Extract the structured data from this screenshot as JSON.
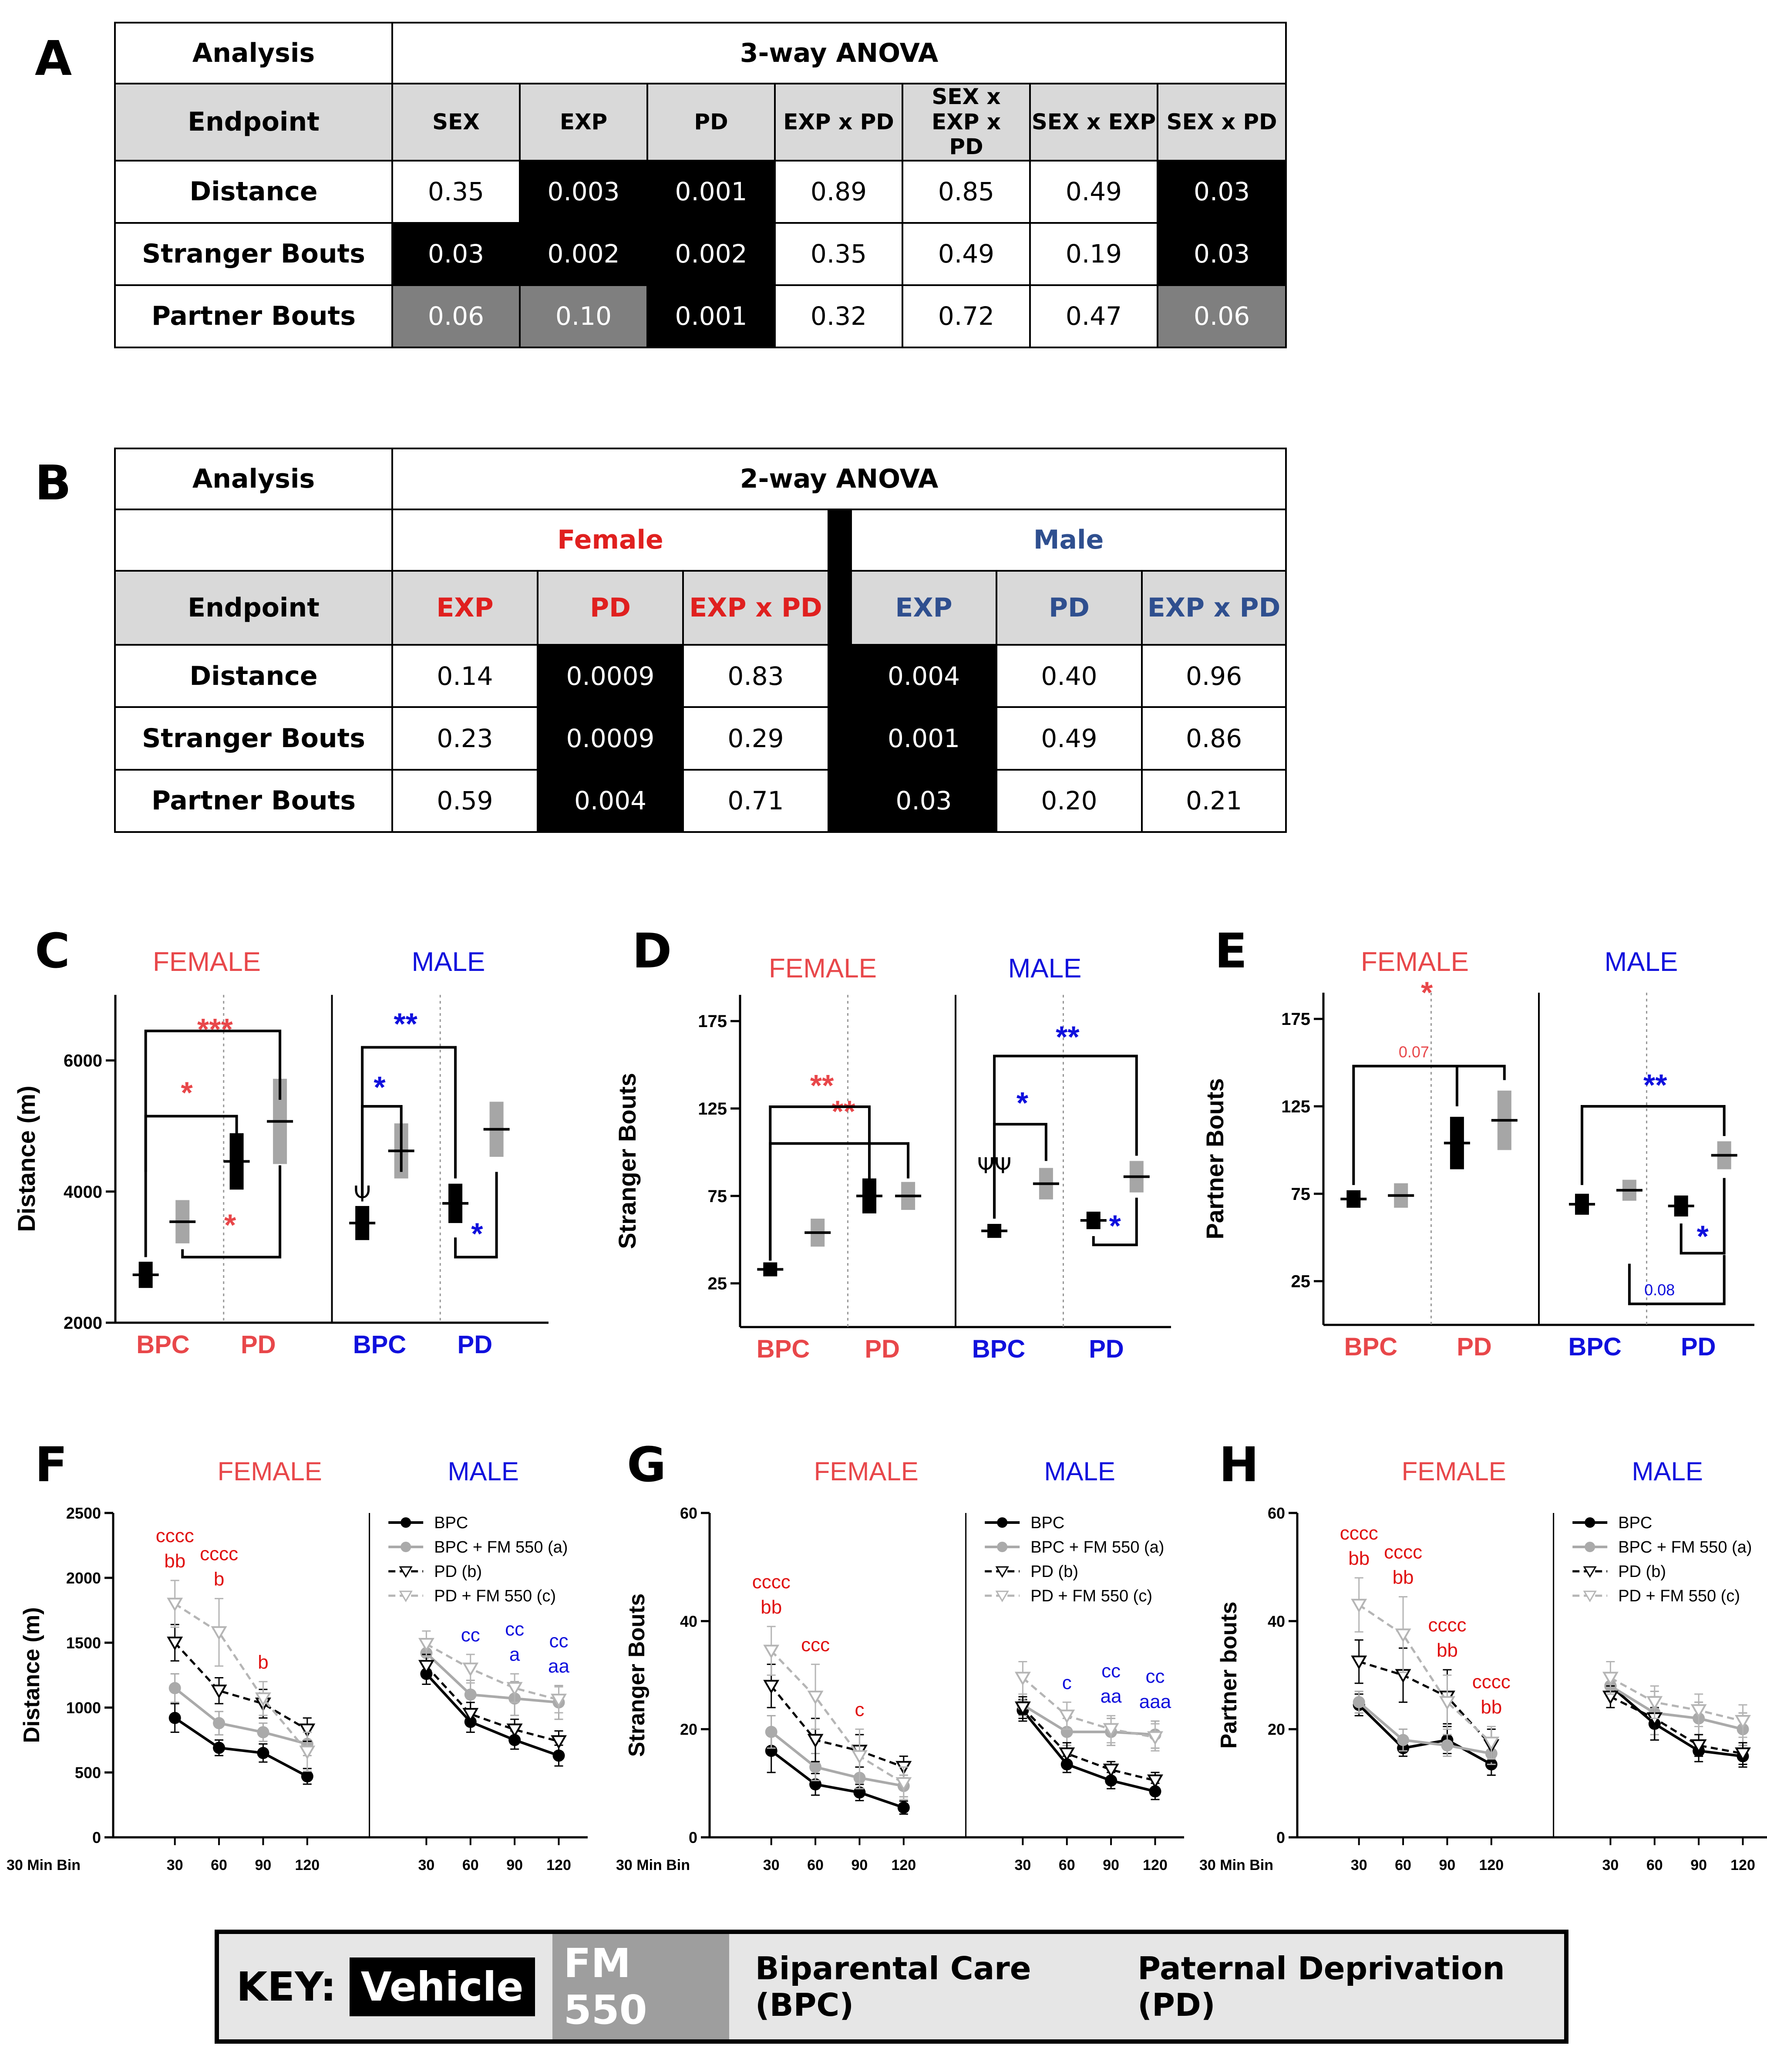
{
  "panels": {
    "A": "A",
    "B": "B",
    "C": "C",
    "D": "D",
    "E": "E",
    "F": "F",
    "G": "G",
    "H": "H"
  },
  "tableA": {
    "analysis_label": "Analysis",
    "analysis_value": "3-way ANOVA",
    "endpoint_label": "Endpoint",
    "columns": [
      "SEX",
      "EXP",
      "PD",
      "EXP x PD",
      "SEX x EXP x PD",
      "SEX x EXP",
      "SEX x PD"
    ],
    "rows": [
      {
        "name": "Distance",
        "values": [
          "0.35",
          "0.003",
          "0.001",
          "0.89",
          "0.85",
          "0.49",
          "0.03"
        ],
        "shade": [
          "w",
          "b",
          "b",
          "w",
          "w",
          "w",
          "b"
        ]
      },
      {
        "name": "Stranger Bouts",
        "values": [
          "0.03",
          "0.002",
          "0.002",
          "0.35",
          "0.49",
          "0.19",
          "0.03"
        ],
        "shade": [
          "b",
          "b",
          "b",
          "w",
          "w",
          "w",
          "b"
        ]
      },
      {
        "name": "Partner Bouts",
        "values": [
          "0.06",
          "0.10",
          "0.001",
          "0.32",
          "0.72",
          "0.47",
          "0.06"
        ],
        "shade": [
          "g",
          "g",
          "b",
          "w",
          "w",
          "w",
          "g"
        ]
      }
    ]
  },
  "tableB": {
    "analysis_label": "Analysis",
    "analysis_value": "2-way ANOVA",
    "female": "Female",
    "male": "Male",
    "endpoint_label": "Endpoint",
    "columns": [
      "EXP",
      "PD",
      "EXP x PD",
      "EXP",
      "PD",
      "EXP x PD"
    ],
    "rows": [
      {
        "name": "Distance",
        "values": [
          "0.14",
          "0.0009",
          "0.83",
          "0.004",
          "0.40",
          "0.96"
        ],
        "shade": [
          "w",
          "b",
          "w",
          "b",
          "w",
          "w"
        ]
      },
      {
        "name": "Stranger Bouts",
        "values": [
          "0.23",
          "0.0009",
          "0.29",
          "0.001",
          "0.49",
          "0.86"
        ],
        "shade": [
          "w",
          "b",
          "w",
          "b",
          "w",
          "w"
        ]
      },
      {
        "name": "Partner Bouts",
        "values": [
          "0.59",
          "0.004",
          "0.71",
          "0.03",
          "0.20",
          "0.21"
        ],
        "shade": [
          "w",
          "b",
          "w",
          "b",
          "w",
          "w"
        ]
      }
    ]
  },
  "colors": {
    "female": "#e8474a",
    "male": "#1010dd",
    "vehicle": "#000000",
    "fm550": "#a6a6a6",
    "male_table": "#2f4f8f",
    "female_table": "#e0201f"
  },
  "chart_data": [
    {
      "id": "C",
      "type": "scatter",
      "ylabel": "Distance (m)",
      "ylim": [
        2000,
        7000
      ],
      "yticks": [
        2000,
        4000,
        6000
      ],
      "female_title": "FEMALE",
      "male_title": "MALE",
      "categories": [
        "BPC",
        "PD",
        "BPC",
        "PD"
      ],
      "series": [
        {
          "name": "Vehicle",
          "group": "FEMALE BPC",
          "mean": 2730,
          "sem": 200
        },
        {
          "name": "FM 550",
          "group": "FEMALE BPC",
          "mean": 3540,
          "sem": 330
        },
        {
          "name": "Vehicle",
          "group": "FEMALE PD",
          "mean": 4460,
          "sem": 430
        },
        {
          "name": "FM 550",
          "group": "FEMALE PD",
          "mean": 5070,
          "sem": 650
        },
        {
          "name": "Vehicle",
          "group": "MALE BPC",
          "mean": 3520,
          "sem": 260
        },
        {
          "name": "FM 550",
          "group": "MALE BPC",
          "mean": 4620,
          "sem": 420
        },
        {
          "name": "Vehicle",
          "group": "MALE PD",
          "mean": 3820,
          "sem": 300
        },
        {
          "name": "FM 550",
          "group": "MALE PD",
          "mean": 4950,
          "sem": 420
        }
      ],
      "annotations": {
        "f_top": "***",
        "f_mid": "*",
        "f_low": "*",
        "m_top": "**",
        "m_mid": "*",
        "m_low": "*",
        "psi": "Ψ"
      }
    },
    {
      "id": "D",
      "type": "scatter",
      "ylabel": "Stranger Bouts",
      "ylim": [
        0,
        190
      ],
      "yticks": [
        25,
        75,
        125,
        175
      ],
      "female_title": "FEMALE",
      "male_title": "MALE",
      "categories": [
        "BPC",
        "PD",
        "BPC",
        "PD"
      ],
      "series": [
        {
          "name": "Vehicle",
          "group": "FEMALE BPC",
          "mean": 33,
          "sem": 4
        },
        {
          "name": "FM 550",
          "group": "FEMALE BPC",
          "mean": 54,
          "sem": 8
        },
        {
          "name": "Vehicle",
          "group": "FEMALE PD",
          "mean": 75,
          "sem": 10
        },
        {
          "name": "FM 550",
          "group": "FEMALE PD",
          "mean": 75,
          "sem": 8
        },
        {
          "name": "Vehicle",
          "group": "MALE BPC",
          "mean": 55,
          "sem": 4
        },
        {
          "name": "FM 550",
          "group": "MALE BPC",
          "mean": 82,
          "sem": 9
        },
        {
          "name": "Vehicle",
          "group": "MALE PD",
          "mean": 61,
          "sem": 5
        },
        {
          "name": "FM 550",
          "group": "MALE PD",
          "mean": 86,
          "sem": 9
        }
      ],
      "annotations": {
        "f_top": "**",
        "f_mid": "**",
        "m_top": "**",
        "m_mid": "*",
        "m_low": "*",
        "psi": "ΨΨ"
      }
    },
    {
      "id": "E",
      "type": "scatter",
      "ylabel": "Partner Bouts",
      "ylim": [
        0,
        190
      ],
      "yticks": [
        25,
        75,
        125,
        175
      ],
      "female_title": "FEMALE",
      "male_title": "MALE",
      "categories": [
        "BPC",
        "PD",
        "BPC",
        "PD"
      ],
      "series": [
        {
          "name": "Vehicle",
          "group": "FEMALE BPC",
          "mean": 72,
          "sem": 5
        },
        {
          "name": "FM 550",
          "group": "FEMALE BPC",
          "mean": 74,
          "sem": 7
        },
        {
          "name": "Vehicle",
          "group": "FEMALE PD",
          "mean": 104,
          "sem": 15
        },
        {
          "name": "FM 550",
          "group": "FEMALE PD",
          "mean": 117,
          "sem": 17
        },
        {
          "name": "Vehicle",
          "group": "MALE BPC",
          "mean": 69,
          "sem": 6
        },
        {
          "name": "FM 550",
          "group": "MALE BPC",
          "mean": 77,
          "sem": 6
        },
        {
          "name": "Vehicle",
          "group": "MALE PD",
          "mean": 68,
          "sem": 6
        },
        {
          "name": "FM 550",
          "group": "MALE PD",
          "mean": 97,
          "sem": 8
        }
      ],
      "annotations": {
        "f_top": "*",
        "f_mid": "0.07",
        "m_top": "**",
        "m_mid": "*",
        "m_low": "0.08"
      }
    },
    {
      "id": "F",
      "type": "line",
      "ylabel": "Distance (m)",
      "xlabel": "30 Min Bin",
      "ylim": [
        0,
        2500
      ],
      "yticks": [
        0,
        500,
        1000,
        1500,
        2000,
        2500
      ],
      "x": [
        30,
        60,
        90,
        120
      ],
      "female_title": "FEMALE",
      "male_title": "MALE",
      "legend": [
        "BPC",
        "BPC + FM 550 (a)",
        "PD (b)",
        "PD + FM 550 (c)"
      ],
      "series_female": [
        [
          920,
          690,
          650,
          470
        ],
        [
          1150,
          880,
          810,
          720
        ],
        [
          1500,
          1130,
          1030,
          830
        ],
        [
          1800,
          1580,
          1070,
          660
        ]
      ],
      "err_female": [
        [
          110,
          60,
          70,
          60
        ],
        [
          110,
          90,
          70,
          90
        ],
        [
          140,
          100,
          110,
          90
        ],
        [
          180,
          260,
          130,
          150
        ]
      ],
      "series_male": [
        [
          1260,
          890,
          750,
          630
        ],
        [
          1420,
          1100,
          1070,
          1040
        ],
        [
          1320,
          950,
          830,
          740
        ],
        [
          1490,
          1300,
          1150,
          1060
        ]
      ],
      "err_male": [
        [
          80,
          80,
          70,
          80
        ],
        [
          80,
          110,
          130,
          130
        ],
        [
          90,
          90,
          80,
          80
        ],
        [
          100,
          110,
          110,
          100
        ]
      ],
      "letters_female": [
        {
          "x": 30,
          "lines": [
            "cccc",
            "bb"
          ]
        },
        {
          "x": 60,
          "lines": [
            "cccc",
            "b"
          ]
        },
        {
          "x": 90,
          "lines": [
            "b"
          ]
        }
      ],
      "letters_male": [
        {
          "x": 60,
          "lines": [
            "cc"
          ]
        },
        {
          "x": 90,
          "lines": [
            "cc",
            "a"
          ]
        },
        {
          "x": 120,
          "lines": [
            "cc",
            "aa"
          ]
        }
      ]
    },
    {
      "id": "G",
      "type": "line",
      "ylabel": "Stranger Bouts",
      "xlabel": "30 Min Bin",
      "ylim": [
        0,
        60
      ],
      "yticks": [
        0,
        20,
        40,
        60
      ],
      "x": [
        30,
        60,
        90,
        120
      ],
      "female_title": "FEMALE",
      "male_title": "MALE",
      "legend": [
        "BPC",
        "BPC + FM 550 (a)",
        "PD (b)",
        "PD + FM 550 (c)"
      ],
      "series_female": [
        [
          16,
          9.8,
          8.3,
          5.5
        ],
        [
          19.5,
          13,
          11,
          9.5
        ],
        [
          28,
          18,
          16,
          13
        ],
        [
          34.5,
          26,
          15,
          10
        ]
      ],
      "err_female": [
        [
          4,
          2,
          1.5,
          1.2
        ],
        [
          3,
          2.5,
          2,
          2
        ],
        [
          4,
          4,
          3,
          2
        ],
        [
          4.5,
          6,
          5,
          3
        ]
      ],
      "series_male": [
        [
          23.5,
          13.5,
          10.5,
          8.5
        ],
        [
          24.5,
          19.5,
          19.5,
          19
        ],
        [
          24,
          15.5,
          12.5,
          10.5
        ],
        [
          29.5,
          22.5,
          20,
          18.5
        ]
      ],
      "err_male": [
        [
          2,
          1.5,
          1.5,
          1.5
        ],
        [
          2,
          2.5,
          2.5,
          2.5
        ],
        [
          2,
          2,
          1.5,
          1.5
        ],
        [
          3,
          2.5,
          2.5,
          2.5
        ]
      ],
      "letters_female": [
        {
          "x": 30,
          "lines": [
            "cccc",
            "bb"
          ]
        },
        {
          "x": 60,
          "lines": [
            "ccc"
          ]
        },
        {
          "x": 90,
          "lines": [
            "c"
          ]
        }
      ],
      "letters_male": [
        {
          "x": 60,
          "lines": [
            "c"
          ]
        },
        {
          "x": 90,
          "lines": [
            "cc",
            "aa"
          ]
        },
        {
          "x": 120,
          "lines": [
            "cc",
            "aaa"
          ]
        }
      ]
    },
    {
      "id": "H",
      "type": "line",
      "ylabel": "Partner bouts",
      "xlabel": "30 Min Bin",
      "ylim": [
        0,
        60
      ],
      "yticks": [
        0,
        20,
        40,
        60
      ],
      "x": [
        30,
        60,
        90,
        120
      ],
      "female_title": "FEMALE",
      "male_title": "MALE",
      "legend": [
        "BPC",
        "BPC  + FM 550 (a)",
        "PD (b)",
        "PD + FM 550 (c)"
      ],
      "series_female": [
        [
          24.5,
          16.5,
          18,
          13.5
        ],
        [
          25,
          18,
          17,
          15.5
        ],
        [
          32.5,
          30,
          26,
          17
        ],
        [
          43,
          37.5,
          25,
          17.5
        ]
      ],
      "err_female": [
        [
          2,
          1.5,
          2.5,
          2
        ],
        [
          2,
          2,
          2,
          2
        ],
        [
          4,
          5,
          5,
          3
        ],
        [
          5,
          7,
          5,
          3
        ]
      ],
      "series_male": [
        [
          28,
          21,
          16,
          15
        ],
        [
          28,
          23,
          22,
          20
        ],
        [
          26,
          22,
          17,
          15.5
        ],
        [
          29.5,
          25,
          23.5,
          21.5
        ]
      ],
      "err_male": [
        [
          2,
          3,
          2,
          2
        ],
        [
          2,
          4,
          3,
          3
        ],
        [
          2,
          4,
          2,
          2
        ],
        [
          3,
          3,
          3,
          3
        ]
      ],
      "letters_female": [
        {
          "x": 30,
          "lines": [
            "cccc",
            "bb"
          ]
        },
        {
          "x": 60,
          "lines": [
            "cccc",
            "bb"
          ]
        },
        {
          "x": 90,
          "lines": [
            "cccc",
            "bb"
          ]
        },
        {
          "x": 120,
          "lines": [
            "cccc",
            "bb"
          ]
        }
      ],
      "letters_male": []
    }
  ],
  "key": {
    "label": "KEY:",
    "vehicle": "Vehicle",
    "fm550": "FM 550",
    "bpc": "Biparental Care (BPC)",
    "pd": "Paternal Deprivation (PD)"
  }
}
